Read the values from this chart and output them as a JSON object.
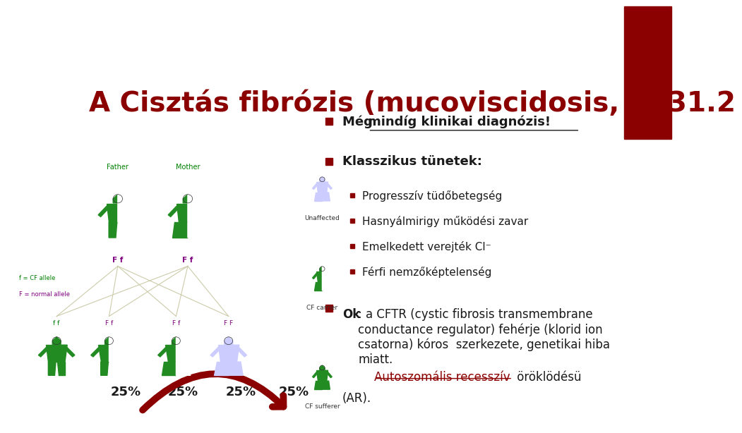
{
  "title": "A Cisztás fibrózis (mucoviscidosis, 7q31.2",
  "title_color": "#8B0000",
  "title_fontsize": 28,
  "bg_color": "#ffffff",
  "red_rect_color": "#8B0000",
  "bullet_color": "#8B0000",
  "text_color": "#1a1a1a",
  "link_color": "#8B0000",
  "bullet1_text": "Még mindíg klinikai diagnózis!",
  "bullet2_header": "Klasszikus tünetek:",
  "sub_bullets": [
    "Progresszív tüdőbetegség",
    "Hasnyálmirigy működési zavar",
    "Emelkedett verejték Cl⁻",
    "Férfi nemzőképtelenség"
  ],
  "bullet3_ok": "Ok",
  "bullet3_text": ": a CFTR (cystic fibrosis transmembrane\nconductance regulator) fehérje (klorid ion\ncsatorna) kóros  szerkezete, genetikai hiba\nmiatt.",
  "bullet3_link": "Autoszomális recesszív",
  "bullet3_end": " öröklödésü",
  "bullet3_ar": "(AR).",
  "percent_labels": [
    "25%",
    "25%",
    "25%",
    "25%"
  ],
  "percent_color": "#1a1a1a",
  "image_bg_color": "#fffff0",
  "arrow_color": "#8B0000",
  "father_label": "Father",
  "mother_label": "Mother",
  "legend1": "f = CF allele",
  "legend2": "F = normal allele",
  "unaffected": "Unaffected",
  "cf_carrier": "CF carrier",
  "cf_sufferer": "CF sufferer"
}
